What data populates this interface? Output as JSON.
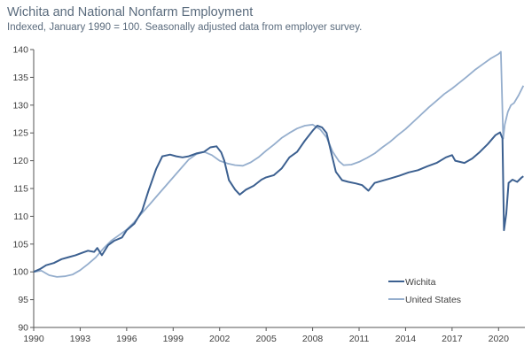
{
  "chart_data": {
    "type": "line",
    "title": "Wichita and National Nonfarm Employment",
    "subtitle": "Indexed, January 1990 = 100. Seasonally adjusted data from employer survey.",
    "xlabel": "",
    "ylabel": "",
    "xlim": [
      1990,
      2021.7
    ],
    "ylim": [
      90,
      140
    ],
    "x_ticks": [
      "1990",
      "1993",
      "1996",
      "1999",
      "2002",
      "2005",
      "2008",
      "2011",
      "2014",
      "2017",
      "2020"
    ],
    "y_ticks": [
      "90",
      "95",
      "100",
      "105",
      "110",
      "115",
      "120",
      "125",
      "130",
      "135",
      "140"
    ],
    "grid": false,
    "legend_position": "bottom-right",
    "series": [
      {
        "name": "Wichita",
        "color": "#3c6090",
        "points": [
          [
            1990.0,
            100.0
          ],
          [
            1990.4,
            100.5
          ],
          [
            1990.8,
            101.2
          ],
          [
            1991.3,
            101.6
          ],
          [
            1991.8,
            102.3
          ],
          [
            1992.2,
            102.6
          ],
          [
            1992.7,
            103.0
          ],
          [
            1993.1,
            103.4
          ],
          [
            1993.5,
            103.8
          ],
          [
            1993.9,
            103.6
          ],
          [
            1994.1,
            104.3
          ],
          [
            1994.4,
            103.0
          ],
          [
            1994.8,
            104.8
          ],
          [
            1995.2,
            105.6
          ],
          [
            1995.7,
            106.2
          ],
          [
            1996.0,
            107.5
          ],
          [
            1996.5,
            108.7
          ],
          [
            1997.0,
            111.0
          ],
          [
            1997.4,
            114.5
          ],
          [
            1997.9,
            118.5
          ],
          [
            1998.3,
            120.8
          ],
          [
            1998.8,
            121.1
          ],
          [
            1999.2,
            120.8
          ],
          [
            1999.6,
            120.6
          ],
          [
            2000.0,
            120.8
          ],
          [
            2000.5,
            121.3
          ],
          [
            2001.0,
            121.6
          ],
          [
            2001.4,
            122.4
          ],
          [
            2001.8,
            122.6
          ],
          [
            2002.1,
            121.5
          ],
          [
            2002.3,
            120.0
          ],
          [
            2002.6,
            116.5
          ],
          [
            2003.0,
            114.8
          ],
          [
            2003.3,
            113.9
          ],
          [
            2003.7,
            114.8
          ],
          [
            2004.2,
            115.5
          ],
          [
            2004.7,
            116.6
          ],
          [
            2005.0,
            117.0
          ],
          [
            2005.5,
            117.4
          ],
          [
            2006.0,
            118.6
          ],
          [
            2006.5,
            120.6
          ],
          [
            2007.0,
            121.6
          ],
          [
            2007.5,
            123.6
          ],
          [
            2008.0,
            125.4
          ],
          [
            2008.3,
            126.3
          ],
          [
            2008.6,
            126.0
          ],
          [
            2008.9,
            125.0
          ],
          [
            2009.2,
            121.5
          ],
          [
            2009.5,
            118.0
          ],
          [
            2009.9,
            116.5
          ],
          [
            2010.3,
            116.2
          ],
          [
            2010.8,
            115.9
          ],
          [
            2011.2,
            115.6
          ],
          [
            2011.6,
            114.6
          ],
          [
            2012.0,
            116.0
          ],
          [
            2012.5,
            116.4
          ],
          [
            2013.0,
            116.8
          ],
          [
            2013.6,
            117.3
          ],
          [
            2014.2,
            117.9
          ],
          [
            2014.8,
            118.3
          ],
          [
            2015.4,
            119.0
          ],
          [
            2016.0,
            119.6
          ],
          [
            2016.6,
            120.6
          ],
          [
            2017.0,
            121.0
          ],
          [
            2017.2,
            120.0
          ],
          [
            2017.8,
            119.6
          ],
          [
            2018.3,
            120.4
          ],
          [
            2018.8,
            121.6
          ],
          [
            2019.3,
            123.0
          ],
          [
            2019.8,
            124.6
          ],
          [
            2020.1,
            125.1
          ],
          [
            2020.25,
            124.0
          ],
          [
            2020.35,
            107.5
          ],
          [
            2020.5,
            110.5
          ],
          [
            2020.65,
            116.0
          ],
          [
            2020.9,
            116.6
          ],
          [
            2021.2,
            116.2
          ],
          [
            2021.5,
            117.0
          ],
          [
            2021.6,
            117.2
          ]
        ]
      },
      {
        "name": "United States",
        "color": "#95aecd",
        "points": [
          [
            1990.0,
            100.0
          ],
          [
            1990.5,
            100.2
          ],
          [
            1991.0,
            99.4
          ],
          [
            1991.5,
            99.1
          ],
          [
            1992.0,
            99.2
          ],
          [
            1992.5,
            99.5
          ],
          [
            1993.0,
            100.3
          ],
          [
            1993.5,
            101.4
          ],
          [
            1994.0,
            102.6
          ],
          [
            1994.5,
            104.2
          ],
          [
            1995.0,
            105.6
          ],
          [
            1995.5,
            106.6
          ],
          [
            1996.0,
            107.6
          ],
          [
            1996.5,
            109.0
          ],
          [
            1997.0,
            110.6
          ],
          [
            1997.5,
            112.2
          ],
          [
            1998.0,
            113.8
          ],
          [
            1998.5,
            115.4
          ],
          [
            1999.0,
            117.0
          ],
          [
            1999.5,
            118.6
          ],
          [
            2000.0,
            120.2
          ],
          [
            2000.5,
            121.2
          ],
          [
            2001.0,
            121.6
          ],
          [
            2001.5,
            121.0
          ],
          [
            2002.0,
            120.0
          ],
          [
            2002.5,
            119.5
          ],
          [
            2003.0,
            119.2
          ],
          [
            2003.5,
            119.1
          ],
          [
            2004.0,
            119.7
          ],
          [
            2004.5,
            120.6
          ],
          [
            2005.0,
            121.8
          ],
          [
            2005.5,
            122.9
          ],
          [
            2006.0,
            124.1
          ],
          [
            2006.5,
            125.0
          ],
          [
            2007.0,
            125.8
          ],
          [
            2007.5,
            126.3
          ],
          [
            2008.0,
            126.5
          ],
          [
            2008.5,
            125.6
          ],
          [
            2008.9,
            124.2
          ],
          [
            2009.3,
            121.6
          ],
          [
            2009.7,
            119.9
          ],
          [
            2010.0,
            119.2
          ],
          [
            2010.5,
            119.3
          ],
          [
            2011.0,
            119.8
          ],
          [
            2011.5,
            120.5
          ],
          [
            2012.0,
            121.3
          ],
          [
            2012.5,
            122.4
          ],
          [
            2013.0,
            123.4
          ],
          [
            2013.5,
            124.6
          ],
          [
            2014.0,
            125.7
          ],
          [
            2014.5,
            127.0
          ],
          [
            2015.0,
            128.3
          ],
          [
            2015.5,
            129.6
          ],
          [
            2016.0,
            130.8
          ],
          [
            2016.5,
            132.0
          ],
          [
            2017.0,
            133.0
          ],
          [
            2017.5,
            134.1
          ],
          [
            2018.0,
            135.2
          ],
          [
            2018.5,
            136.4
          ],
          [
            2019.0,
            137.4
          ],
          [
            2019.5,
            138.4
          ],
          [
            2020.0,
            139.2
          ],
          [
            2020.15,
            139.6
          ],
          [
            2020.3,
            124.0
          ],
          [
            2020.4,
            126.5
          ],
          [
            2020.6,
            128.8
          ],
          [
            2020.8,
            130.0
          ],
          [
            2021.0,
            130.4
          ],
          [
            2021.3,
            131.8
          ],
          [
            2021.6,
            133.5
          ]
        ]
      }
    ]
  }
}
